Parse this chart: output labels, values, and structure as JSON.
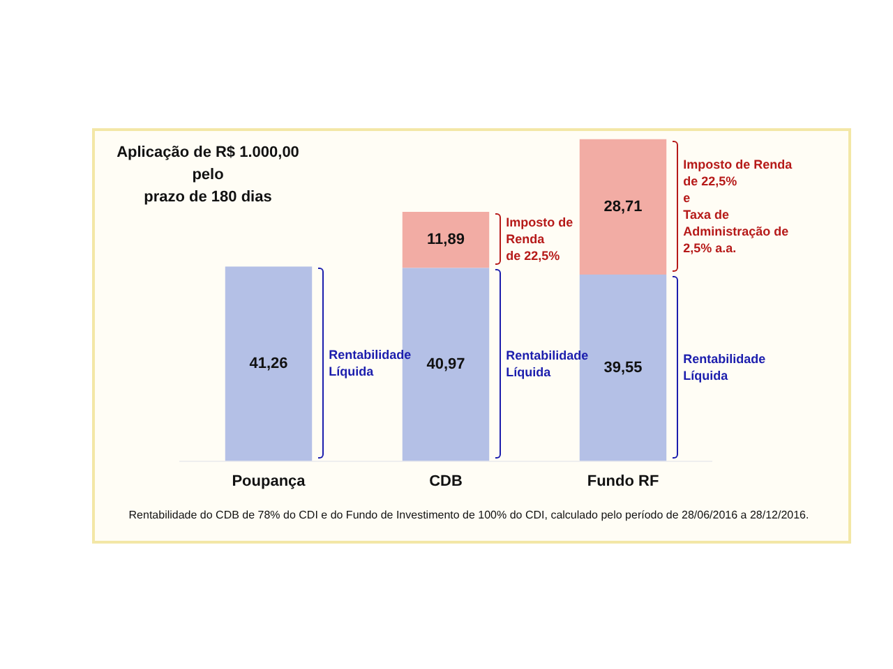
{
  "chart_data": {
    "type": "bar",
    "title": "Aplicação de R$ 1.000,00\npelo\nprazo de 180 dias",
    "categories": [
      "Poupança",
      "CDB",
      "Fundo RF"
    ],
    "stacked": true,
    "grid": false,
    "legend": false,
    "tick_labels": "x",
    "series": [
      {
        "color": "#b4c0e6",
        "values": [
          41.26,
          40.97,
          39.55
        ],
        "value_labels": [
          "41,26",
          "40,97",
          "39,55"
        ]
      },
      {
        "color": "#f2aca4",
        "values": [
          null,
          11.89,
          28.71
        ],
        "value_labels": [
          null,
          "11,89",
          "28,71"
        ]
      }
    ],
    "annotations": [
      "Rentabilidade\nLíquida",
      "Rentabilidade\nLíquida",
      "Rentabilidade\nLíquida",
      "Imposto de\nRenda\nde 22,5%",
      "Imposto de Renda\nde 22,5%\ne\nTaxa de\nAdministração de\n2,5% a.a.",
      "Rentabilidade do CDB de 78% do CDI e do Fundo de Investimento de 100% do CDI, calculado pelo período de 28/06/2016 a 28/12/2016."
    ]
  }
}
